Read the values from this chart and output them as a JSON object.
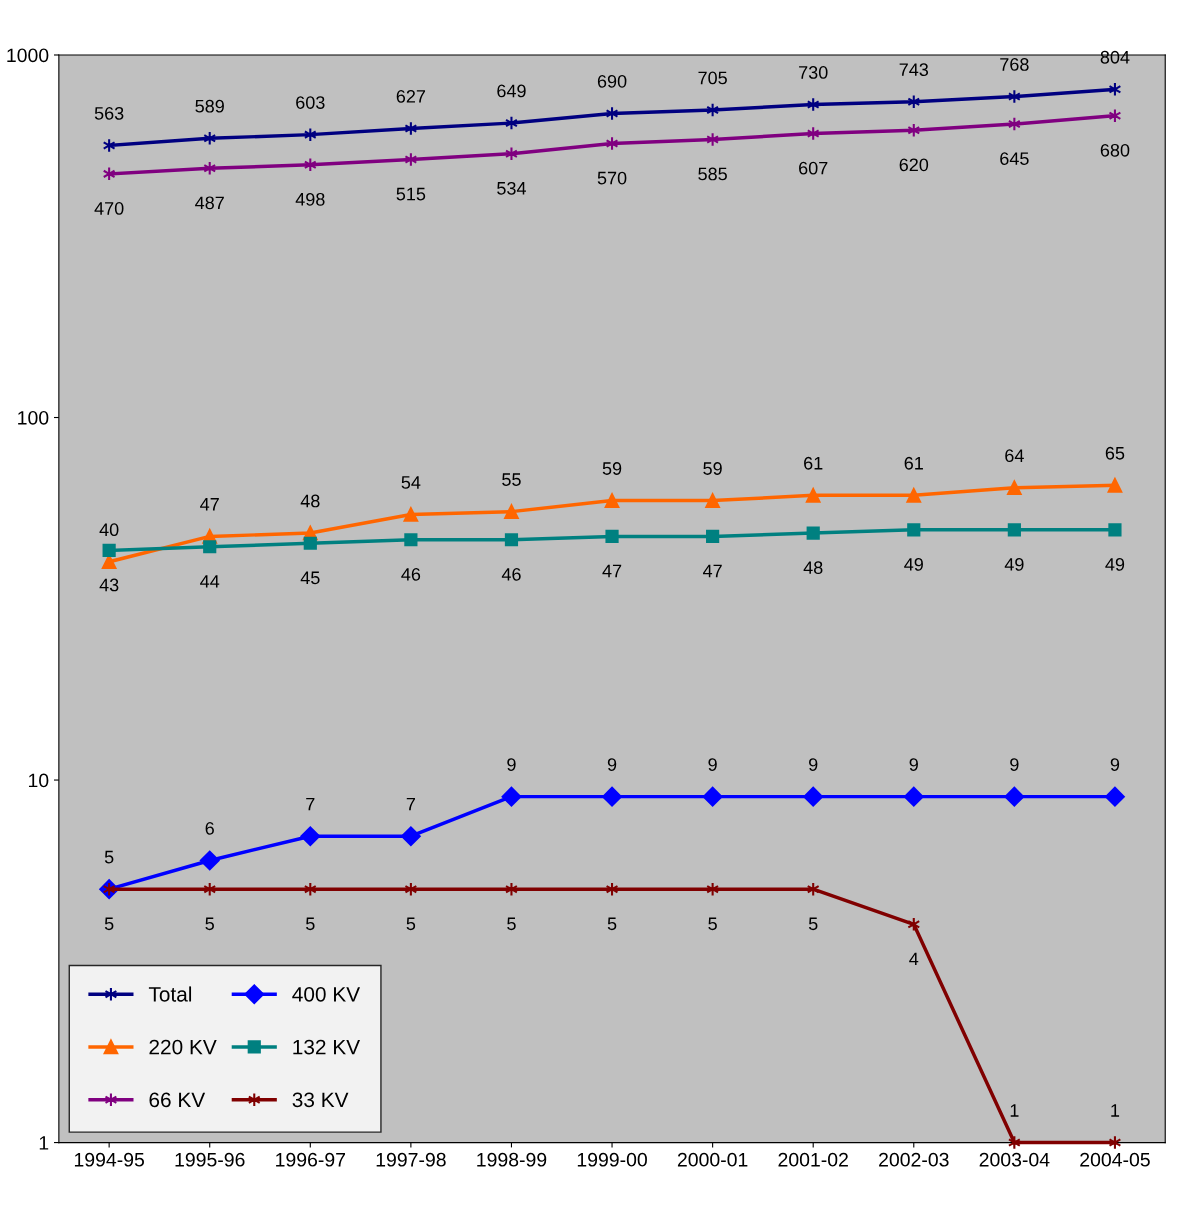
{
  "chart_data": {
    "type": "line",
    "categories": [
      "1994-95",
      "1995-96",
      "1996-97",
      "1997-98",
      "1998-99",
      "1999-00",
      "2000-01",
      "2001-02",
      "2002-03",
      "2003-04",
      "2004-05"
    ],
    "series": [
      {
        "name": "Total",
        "color": "#000080",
        "marker": "cross",
        "values": [
          563,
          589,
          603,
          627,
          649,
          690,
          705,
          730,
          743,
          768,
          804
        ]
      },
      {
        "name": "220 KV",
        "color": "#ff6600",
        "marker": "triangle",
        "values": [
          40,
          47,
          48,
          54,
          55,
          59,
          59,
          61,
          61,
          64,
          65
        ]
      },
      {
        "name": "66 KV",
        "color": "#800080",
        "marker": "cross",
        "values": [
          470,
          487,
          498,
          515,
          534,
          570,
          585,
          607,
          620,
          645,
          680
        ]
      },
      {
        "name": "400 KV",
        "color": "#0000ff",
        "marker": "diamond",
        "values": [
          5,
          6,
          7,
          7,
          9,
          9,
          9,
          9,
          9,
          9,
          9
        ]
      },
      {
        "name": "132 KV",
        "color": "#008080",
        "marker": "square",
        "values": [
          43,
          44,
          45,
          46,
          46,
          47,
          47,
          48,
          49,
          49,
          49
        ]
      },
      {
        "name": "33 KV",
        "color": "#800000",
        "marker": "cross",
        "values": [
          5,
          5,
          5,
          5,
          5,
          5,
          5,
          5,
          4,
          1,
          1
        ]
      }
    ],
    "log": true,
    "ylim": [
      1,
      1000
    ],
    "yticks": [
      1,
      10,
      100,
      1000
    ],
    "grid": false,
    "legend": "bottom left",
    "data_labels": true
  }
}
